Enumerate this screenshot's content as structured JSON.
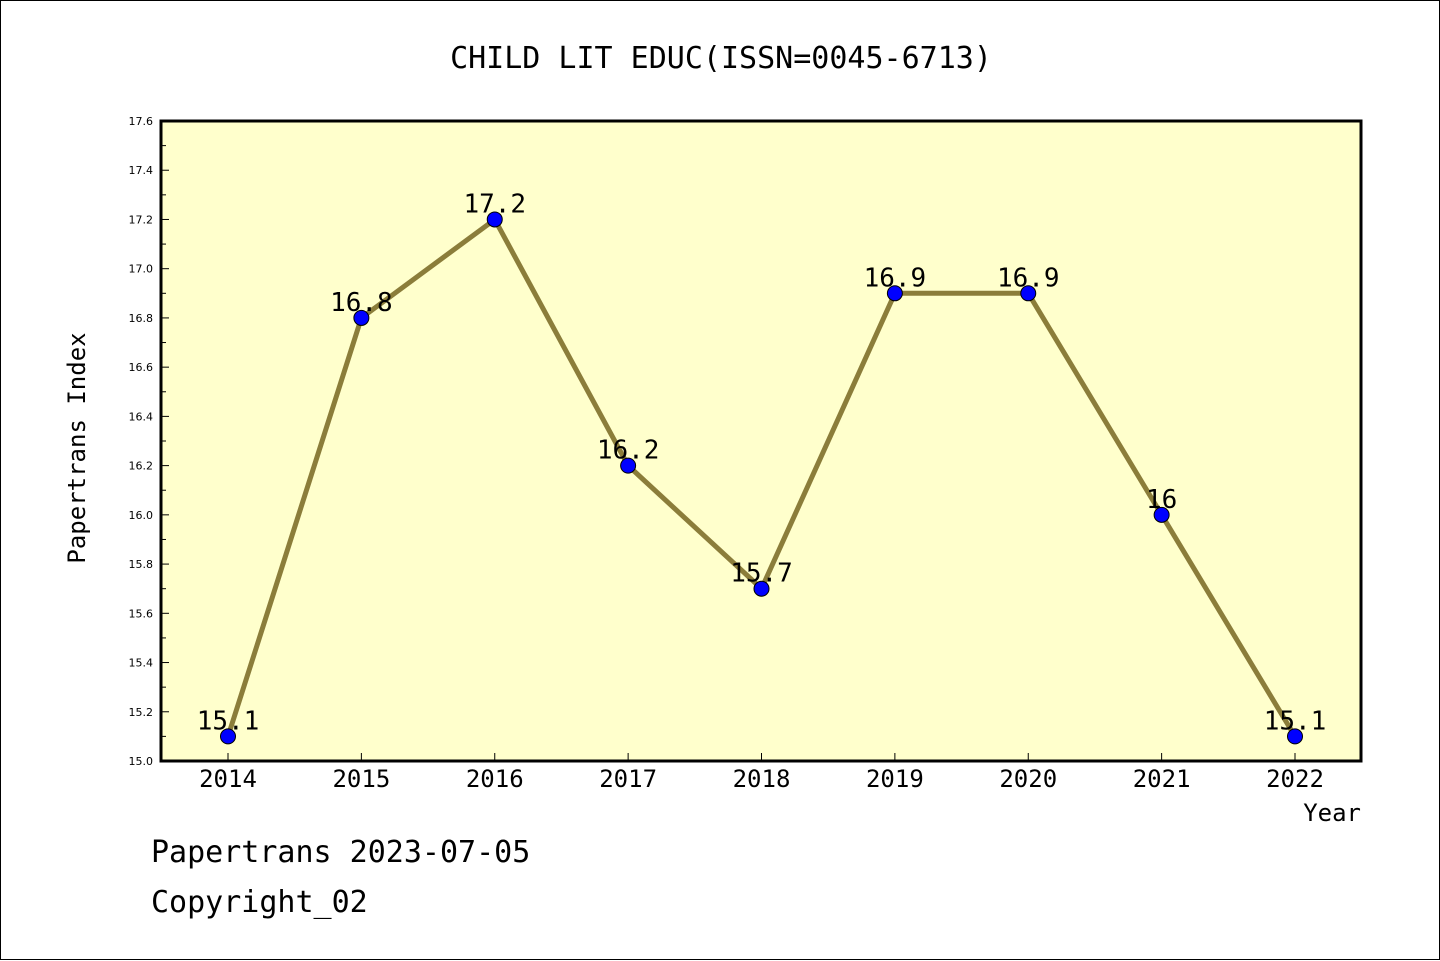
{
  "chart_data": {
    "type": "line",
    "title": "CHILD LIT EDUC(ISSN=0045-6713)",
    "xlabel": "Year",
    "ylabel": "Papertrans Index",
    "categories": [
      "2014",
      "2015",
      "2016",
      "2017",
      "2018",
      "2019",
      "2020",
      "2021",
      "2022"
    ],
    "values": [
      15.1,
      16.8,
      17.2,
      16.2,
      15.7,
      16.9,
      16.9,
      16.0,
      15.1
    ],
    "data_labels": [
      "15.1",
      "16.8",
      "17.2",
      "16.2",
      "15.7",
      "16.9",
      "16.9",
      "16",
      "15.1"
    ],
    "ylim": [
      15.0,
      17.6
    ],
    "yticks": [
      "15.0",
      "15.2",
      "15.4",
      "15.6",
      "15.8",
      "16.0",
      "16.2",
      "16.4",
      "16.6",
      "16.8",
      "17.0",
      "17.2",
      "17.4",
      "17.6"
    ],
    "grid": false,
    "legend": "none",
    "colors": {
      "plot_background": "#ffffcc",
      "line": "#8b7d3a",
      "marker": "#0000ff"
    }
  },
  "footer": {
    "line1": "Papertrans 2023-07-05",
    "line2": "Copyright_02"
  }
}
